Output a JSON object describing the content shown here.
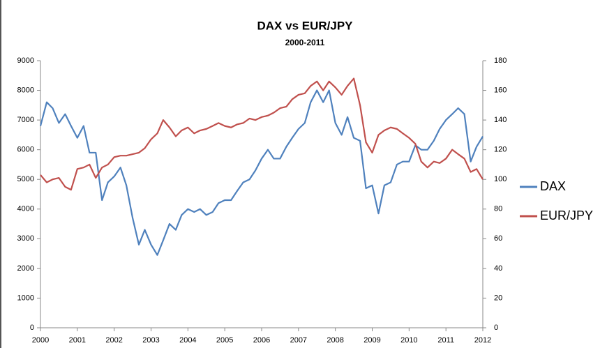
{
  "chart_data": {
    "type": "line",
    "title": "DAX vs EUR/JPY",
    "subtitle": "2000-2011",
    "x": [
      2000,
      2000.17,
      2000.33,
      2000.5,
      2000.67,
      2000.83,
      2001,
      2001.17,
      2001.33,
      2001.5,
      2001.67,
      2001.83,
      2002,
      2002.17,
      2002.33,
      2002.5,
      2002.67,
      2002.83,
      2003,
      2003.17,
      2003.33,
      2003.5,
      2003.67,
      2003.83,
      2004,
      2004.17,
      2004.33,
      2004.5,
      2004.67,
      2004.83,
      2005,
      2005.17,
      2005.33,
      2005.5,
      2005.67,
      2005.83,
      2006,
      2006.17,
      2006.33,
      2006.5,
      2006.67,
      2006.83,
      2007,
      2007.17,
      2007.33,
      2007.5,
      2007.67,
      2007.83,
      2008,
      2008.17,
      2008.33,
      2008.5,
      2008.67,
      2008.83,
      2009,
      2009.17,
      2009.33,
      2009.5,
      2009.67,
      2009.83,
      2010,
      2010.17,
      2010.33,
      2010.5,
      2010.67,
      2010.83,
      2011,
      2011.17,
      2011.33,
      2011.5,
      2011.67,
      2011.83,
      2012
    ],
    "series": [
      {
        "name": "DAX",
        "color": "#4f81bd",
        "values": [
          6800,
          7600,
          7400,
          6900,
          7200,
          6800,
          6400,
          6800,
          5900,
          5900,
          4300,
          4900,
          5100,
          5400,
          4800,
          3700,
          2800,
          3300,
          2800,
          2450,
          2950,
          3500,
          3300,
          3800,
          4000,
          3900,
          4000,
          3800,
          3900,
          4200,
          4300,
          4300,
          4600,
          4900,
          5000,
          5300,
          5700,
          6000,
          5700,
          5700,
          6100,
          6400,
          6700,
          6900,
          7600,
          8000,
          7600,
          8000,
          6900,
          6500,
          7100,
          6400,
          6300,
          4700,
          4800,
          3850,
          4800,
          4900,
          5500,
          5600,
          5600,
          6150,
          6000,
          6000,
          6300,
          6700,
          7000,
          7200,
          7400,
          7200,
          5600,
          6100,
          6450
        ]
      },
      {
        "name": "EUR/JPY",
        "color": "#c0504d",
        "axis": "y2",
        "values": [
          103,
          98,
          100,
          101,
          95,
          93,
          107,
          108,
          110,
          101,
          108,
          110,
          115,
          116,
          116,
          117,
          118,
          121,
          127,
          131,
          140,
          135,
          129,
          133,
          135,
          131,
          133,
          134,
          136,
          138,
          136,
          135,
          137,
          138,
          141,
          140,
          142,
          143,
          145,
          148,
          149,
          154,
          157,
          158,
          163,
          166,
          160,
          166,
          162,
          157,
          163,
          168,
          150,
          125,
          118,
          130,
          133,
          135,
          134,
          131,
          128,
          124,
          112,
          108,
          112,
          111,
          114,
          120,
          117,
          114,
          105,
          107,
          100
        ]
      }
    ],
    "xlim": [
      2000,
      2012
    ],
    "xticks": [
      2000,
      2001,
      2002,
      2003,
      2004,
      2005,
      2006,
      2007,
      2008,
      2009,
      2010,
      2011,
      2012
    ],
    "ylim": [
      0,
      9000
    ],
    "yticks": [
      0,
      1000,
      2000,
      3000,
      4000,
      5000,
      6000,
      7000,
      8000,
      9000
    ],
    "y2lim": [
      0,
      180
    ],
    "y2ticks": [
      0,
      20,
      40,
      60,
      80,
      100,
      120,
      140,
      160,
      180
    ],
    "grid": false,
    "legend": "right"
  }
}
